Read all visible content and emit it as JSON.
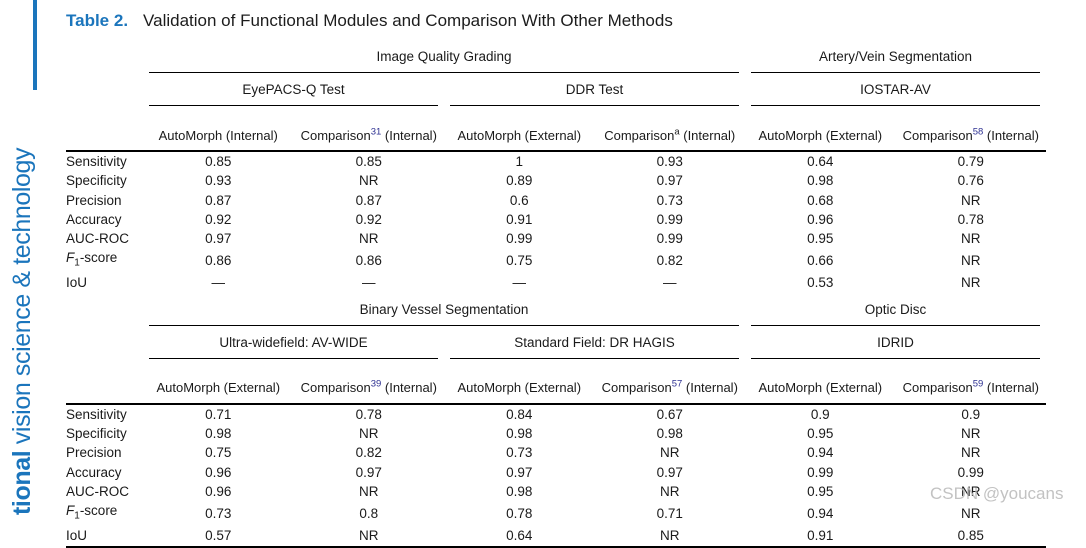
{
  "colors": {
    "accent_blue": "#1b75bc",
    "citation_blue": "#2e3192",
    "text_dark": "#1a1a1a",
    "watermark_gray": "#bcbcbc"
  },
  "sidebar": {
    "bold_text": "tional",
    "rest_text": " vision science & technology"
  },
  "caption": {
    "label": "Table 2.",
    "title": "Validation of Functional Modules and Comparison With Other Methods"
  },
  "watermark": {
    "text": "CSDN @youcans"
  },
  "table": {
    "sections": [
      {
        "groups": [
          {
            "label": "Image Quality Grading",
            "span": 4
          },
          {
            "label": "Artery/Vein Segmentation",
            "span": 2
          }
        ],
        "subgroups": [
          "EyePACS-Q Test",
          "DDR Test",
          "IOSTAR-AV"
        ],
        "columns": [
          {
            "name": "AutoMorph",
            "sup": "",
            "link": false,
            "tail": "(Internal)"
          },
          {
            "name": "Comparison",
            "sup": "31",
            "link": true,
            "tail": "(Internal)"
          },
          {
            "name": "AutoMorph",
            "sup": "",
            "link": false,
            "tail": "(External)"
          },
          {
            "name": "Comparison",
            "sup": "a",
            "link": false,
            "tail": "(Internal)"
          },
          {
            "name": "AutoMorph",
            "sup": "",
            "link": false,
            "tail": "(External)"
          },
          {
            "name": "Comparison",
            "sup": "58",
            "link": true,
            "tail": "(Internal)"
          }
        ],
        "rows": [
          {
            "label": "Sensitivity",
            "values": [
              "0.85",
              "0.85",
              "1",
              "0.93",
              "0.64",
              "0.79"
            ]
          },
          {
            "label": "Specificity",
            "values": [
              "0.93",
              "NR",
              "0.89",
              "0.97",
              "0.98",
              "0.76"
            ]
          },
          {
            "label": "Precision",
            "values": [
              "0.87",
              "0.87",
              "0.6",
              "0.73",
              "0.68",
              "NR"
            ]
          },
          {
            "label": "Accuracy",
            "values": [
              "0.92",
              "0.92",
              "0.91",
              "0.99",
              "0.96",
              "0.78"
            ]
          },
          {
            "label": "AUC-ROC",
            "values": [
              "0.97",
              "NR",
              "0.99",
              "0.99",
              "0.95",
              "NR"
            ]
          },
          {
            "label": "F₁-score",
            "values": [
              "0.86",
              "0.86",
              "0.75",
              "0.82",
              "0.66",
              "NR"
            ]
          },
          {
            "label": "IoU",
            "values": [
              "—",
              "—",
              "—",
              "—",
              "0.53",
              "NR"
            ]
          }
        ]
      },
      {
        "groups": [
          {
            "label": "Binary Vessel Segmentation",
            "span": 4
          },
          {
            "label": "Optic Disc",
            "span": 2
          }
        ],
        "subgroups": [
          "Ultra-widefield: AV-WIDE",
          "Standard Field: DR HAGIS",
          "IDRID"
        ],
        "columns": [
          {
            "name": "AutoMorph",
            "sup": "",
            "link": false,
            "tail": "(External)"
          },
          {
            "name": "Comparison",
            "sup": "39",
            "link": true,
            "tail": "(Internal)"
          },
          {
            "name": "AutoMorph",
            "sup": "",
            "link": false,
            "tail": "(External)"
          },
          {
            "name": "Comparison",
            "sup": "57",
            "link": true,
            "tail": "(Internal)"
          },
          {
            "name": "AutoMorph",
            "sup": "",
            "link": false,
            "tail": "(External)"
          },
          {
            "name": "Comparison",
            "sup": "59",
            "link": true,
            "tail": "(Internal)"
          }
        ],
        "rows": [
          {
            "label": "Sensitivity",
            "values": [
              "0.71",
              "0.78",
              "0.84",
              "0.67",
              "0.9",
              "0.9"
            ]
          },
          {
            "label": "Specificity",
            "values": [
              "0.98",
              "NR",
              "0.98",
              "0.98",
              "0.95",
              "NR"
            ]
          },
          {
            "label": "Precision",
            "values": [
              "0.75",
              "0.82",
              "0.73",
              "NR",
              "0.94",
              "NR"
            ]
          },
          {
            "label": "Accuracy",
            "values": [
              "0.96",
              "0.97",
              "0.97",
              "0.97",
              "0.99",
              "0.99"
            ]
          },
          {
            "label": "AUC-ROC",
            "values": [
              "0.96",
              "NR",
              "0.98",
              "NR",
              "0.95",
              "NR"
            ]
          },
          {
            "label": "F₁-score",
            "values": [
              "0.73",
              "0.8",
              "0.78",
              "0.71",
              "0.94",
              "NR"
            ]
          },
          {
            "label": "IoU",
            "values": [
              "0.57",
              "NR",
              "0.64",
              "NR",
              "0.91",
              "0.85"
            ]
          }
        ]
      }
    ]
  }
}
